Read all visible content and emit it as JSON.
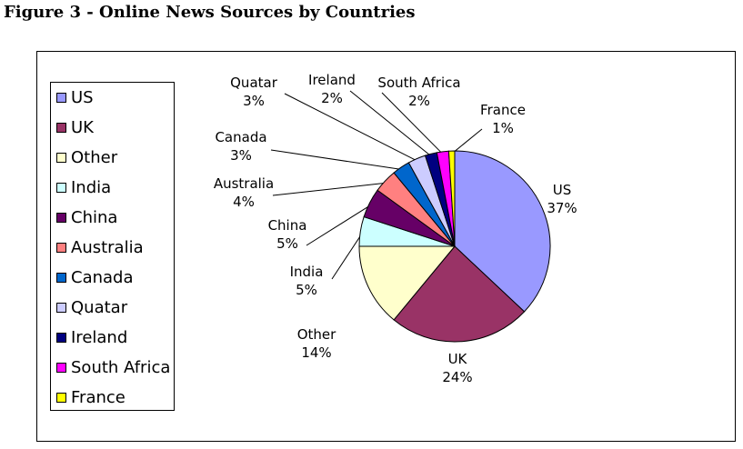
{
  "figure_title": "Figure 3 - Online News Sources by Countries",
  "chart_data": {
    "type": "pie",
    "legend_position": "left",
    "categories": [
      "US",
      "UK",
      "Other",
      "India",
      "China",
      "Australia",
      "Canada",
      "Quatar",
      "Ireland",
      "South Africa",
      "France"
    ],
    "values": [
      37,
      24,
      14,
      5,
      5,
      4,
      3,
      3,
      2,
      2,
      1
    ],
    "value_labels": [
      "37%",
      "24%",
      "14%",
      "5%",
      "5%",
      "4%",
      "3%",
      "3%",
      "2%",
      "2%",
      "1%"
    ],
    "colors": [
      "#9999ff",
      "#993366",
      "#ffffcc",
      "#ccffff",
      "#660066",
      "#ff8080",
      "#0066cc",
      "#ccccff",
      "#000080",
      "#ff00ff",
      "#ffff00"
    ]
  }
}
